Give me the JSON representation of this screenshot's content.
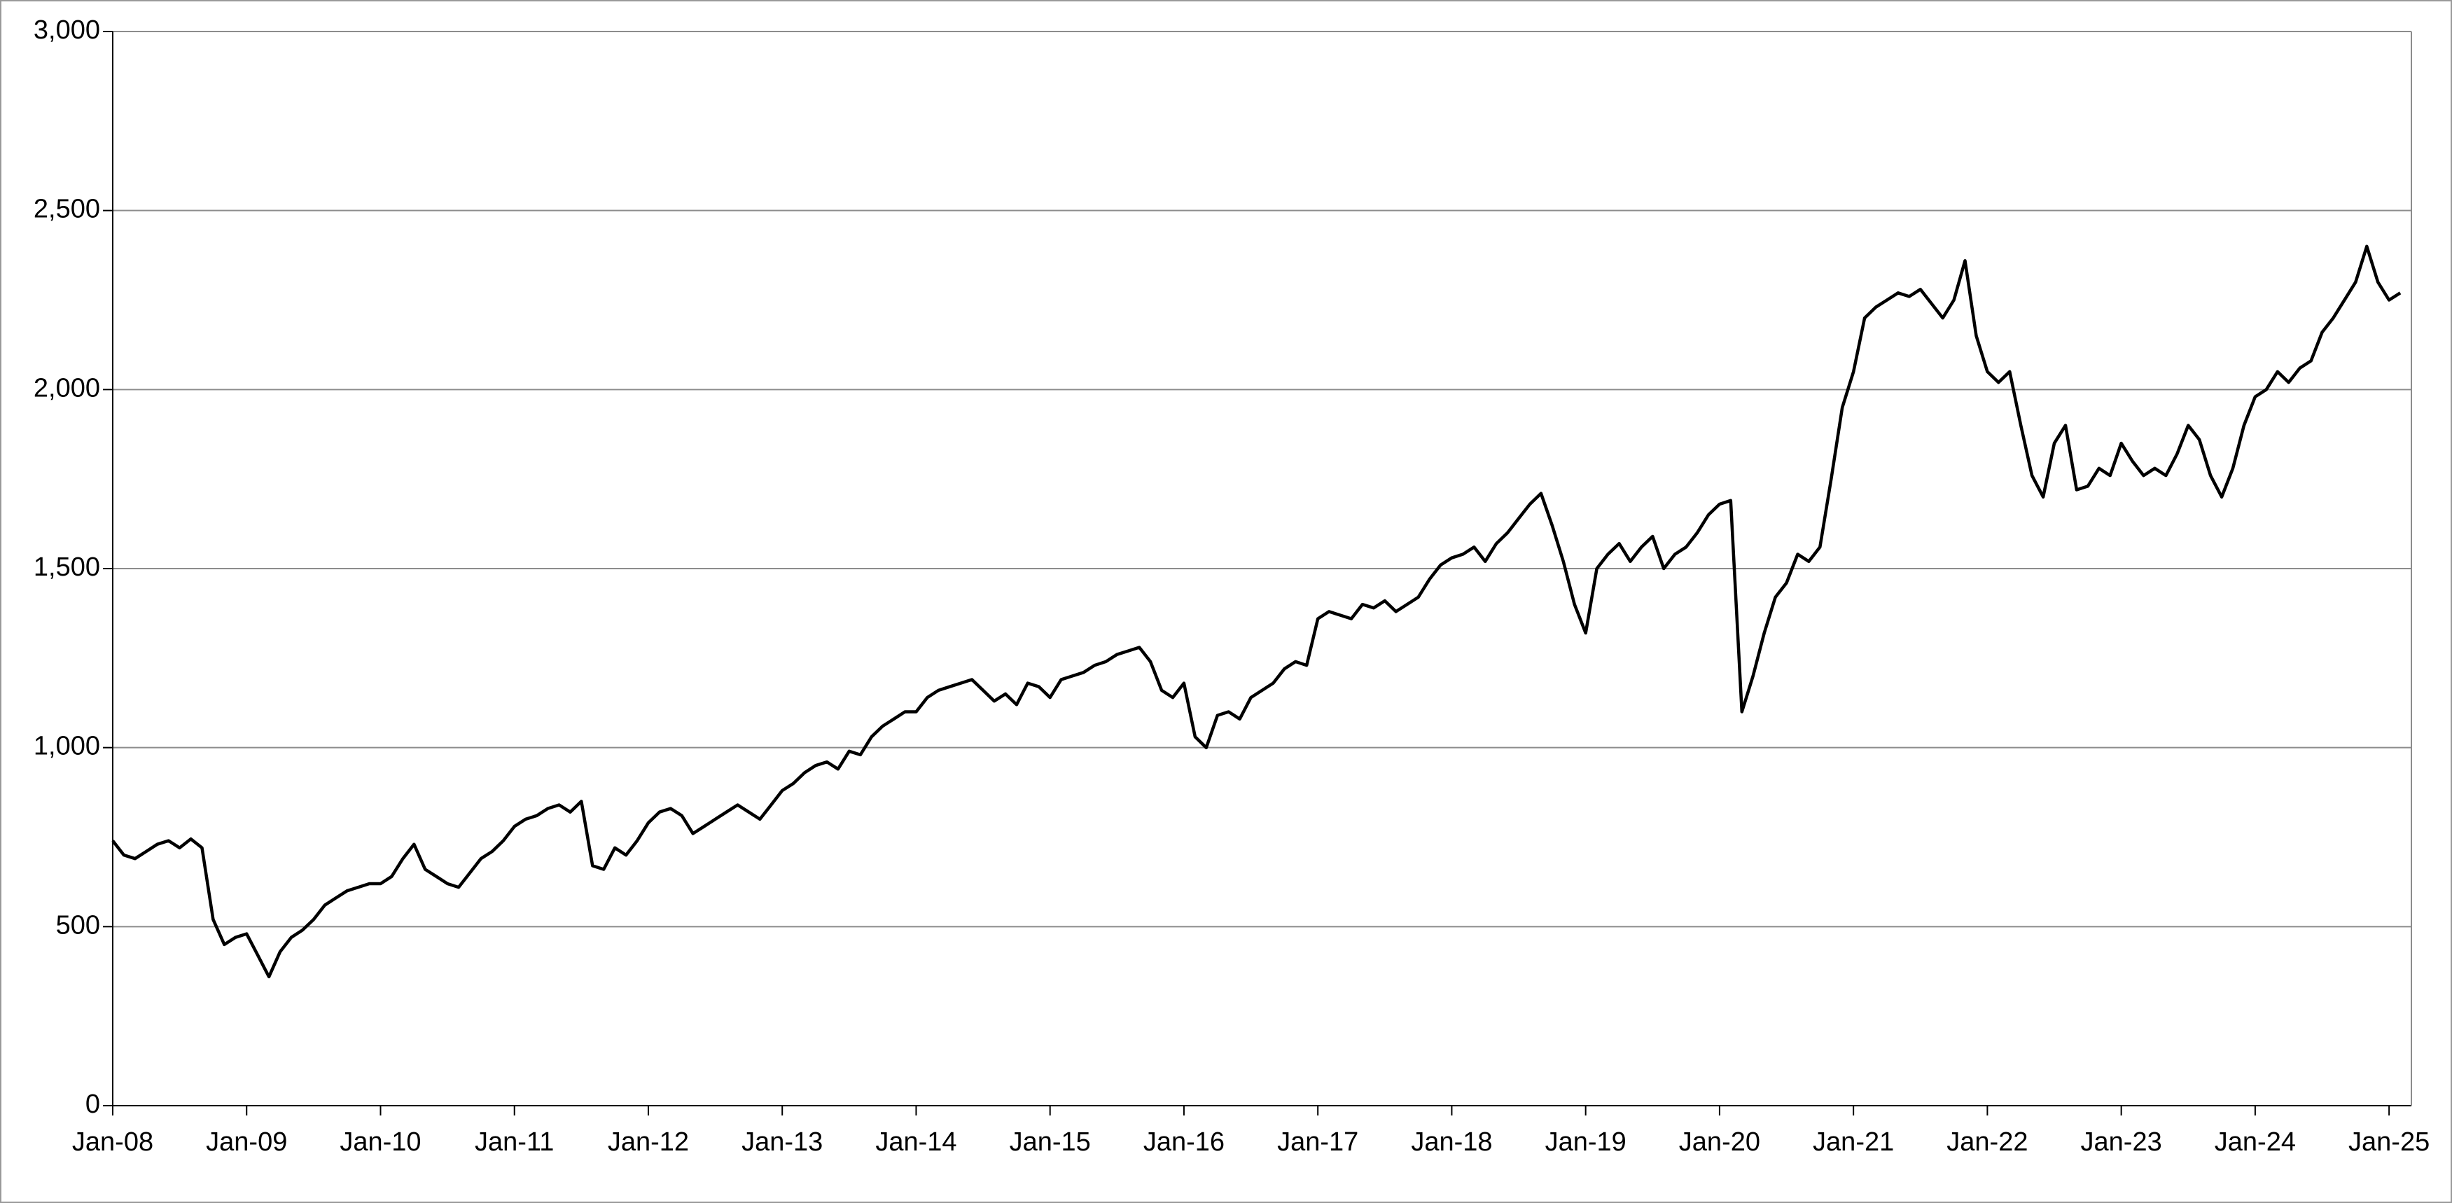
{
  "chart_data": {
    "type": "line",
    "color": "#000000",
    "grid": true,
    "x": [
      "2008-01",
      "2008-02",
      "2008-03",
      "2008-04",
      "2008-05",
      "2008-06",
      "2008-07",
      "2008-08",
      "2008-09",
      "2008-10",
      "2008-11",
      "2008-12",
      "2009-01",
      "2009-02",
      "2009-03",
      "2009-04",
      "2009-05",
      "2009-06",
      "2009-07",
      "2009-08",
      "2009-09",
      "2009-10",
      "2009-11",
      "2009-12",
      "2010-01",
      "2010-02",
      "2010-03",
      "2010-04",
      "2010-05",
      "2010-06",
      "2010-07",
      "2010-08",
      "2010-09",
      "2010-10",
      "2010-11",
      "2010-12",
      "2011-01",
      "2011-02",
      "2011-03",
      "2011-04",
      "2011-05",
      "2011-06",
      "2011-07",
      "2011-08",
      "2011-09",
      "2011-10",
      "2011-11",
      "2011-12",
      "2012-01",
      "2012-02",
      "2012-03",
      "2012-04",
      "2012-05",
      "2012-06",
      "2012-07",
      "2012-08",
      "2012-09",
      "2012-10",
      "2012-11",
      "2012-12",
      "2013-01",
      "2013-02",
      "2013-03",
      "2013-04",
      "2013-05",
      "2013-06",
      "2013-07",
      "2013-08",
      "2013-09",
      "2013-10",
      "2013-11",
      "2013-12",
      "2014-01",
      "2014-02",
      "2014-03",
      "2014-04",
      "2014-05",
      "2014-06",
      "2014-07",
      "2014-08",
      "2014-09",
      "2014-10",
      "2014-11",
      "2014-12",
      "2015-01",
      "2015-02",
      "2015-03",
      "2015-04",
      "2015-05",
      "2015-06",
      "2015-07",
      "2015-08",
      "2015-09",
      "2015-10",
      "2015-11",
      "2015-12",
      "2016-01",
      "2016-02",
      "2016-03",
      "2016-04",
      "2016-05",
      "2016-06",
      "2016-07",
      "2016-08",
      "2016-09",
      "2016-10",
      "2016-11",
      "2016-12",
      "2017-01",
      "2017-02",
      "2017-03",
      "2017-04",
      "2017-05",
      "2017-06",
      "2017-07",
      "2017-08",
      "2017-09",
      "2017-10",
      "2017-11",
      "2017-12",
      "2018-01",
      "2018-02",
      "2018-03",
      "2018-04",
      "2018-05",
      "2018-06",
      "2018-07",
      "2018-08",
      "2018-09",
      "2018-10",
      "2018-11",
      "2018-12",
      "2019-01",
      "2019-02",
      "2019-03",
      "2019-04",
      "2019-05",
      "2019-06",
      "2019-07",
      "2019-08",
      "2019-09",
      "2019-10",
      "2019-11",
      "2019-12",
      "2020-01",
      "2020-02",
      "2020-03",
      "2020-04",
      "2020-05",
      "2020-06",
      "2020-07",
      "2020-08",
      "2020-09",
      "2020-10",
      "2020-11",
      "2020-12",
      "2021-01",
      "2021-02",
      "2021-03",
      "2021-04",
      "2021-05",
      "2021-06",
      "2021-07",
      "2021-08",
      "2021-09",
      "2021-10",
      "2021-11",
      "2021-12",
      "2022-01",
      "2022-02",
      "2022-03",
      "2022-04",
      "2022-05",
      "2022-06",
      "2022-07",
      "2022-08",
      "2022-09",
      "2022-10",
      "2022-11",
      "2022-12",
      "2023-01",
      "2023-02",
      "2023-03",
      "2023-04",
      "2023-05",
      "2023-06",
      "2023-07",
      "2023-08",
      "2023-09",
      "2023-10",
      "2023-11",
      "2023-12",
      "2024-01",
      "2024-02",
      "2024-03",
      "2024-04",
      "2024-05",
      "2024-06",
      "2024-07",
      "2024-08",
      "2024-09",
      "2024-10",
      "2024-11",
      "2024-12",
      "2025-01",
      "2025-02"
    ],
    "values": [
      740,
      700,
      690,
      710,
      730,
      740,
      720,
      745,
      720,
      520,
      450,
      470,
      480,
      420,
      360,
      430,
      470,
      490,
      520,
      560,
      580,
      600,
      610,
      620,
      620,
      640,
      690,
      730,
      660,
      640,
      620,
      610,
      650,
      690,
      710,
      740,
      780,
      800,
      810,
      830,
      840,
      820,
      850,
      670,
      660,
      720,
      700,
      740,
      790,
      820,
      830,
      810,
      760,
      780,
      800,
      820,
      840,
      820,
      800,
      840,
      880,
      900,
      930,
      950,
      960,
      940,
      990,
      980,
      1030,
      1060,
      1080,
      1100,
      1100,
      1140,
      1160,
      1170,
      1180,
      1190,
      1160,
      1130,
      1150,
      1120,
      1180,
      1170,
      1140,
      1190,
      1200,
      1210,
      1230,
      1240,
      1260,
      1270,
      1280,
      1240,
      1160,
      1140,
      1180,
      1030,
      1000,
      1090,
      1100,
      1080,
      1140,
      1160,
      1180,
      1220,
      1240,
      1230,
      1360,
      1380,
      1370,
      1360,
      1400,
      1390,
      1410,
      1380,
      1400,
      1420,
      1470,
      1510,
      1530,
      1540,
      1560,
      1520,
      1570,
      1600,
      1640,
      1680,
      1710,
      1620,
      1520,
      1400,
      1320,
      1500,
      1540,
      1570,
      1520,
      1560,
      1590,
      1500,
      1540,
      1560,
      1600,
      1650,
      1680,
      1690,
      1100,
      1200,
      1320,
      1420,
      1460,
      1540,
      1520,
      1560,
      1750,
      1950,
      2050,
      2200,
      2230,
      2250,
      2270,
      2260,
      2280,
      2240,
      2200,
      2250,
      2360,
      2150,
      2050,
      2020,
      2050,
      1900,
      1760,
      1700,
      1850,
      1900,
      1720,
      1730,
      1780,
      1760,
      1850,
      1800,
      1760,
      1780,
      1760,
      1820,
      1900,
      1860,
      1760,
      1700,
      1780,
      1900,
      1980,
      2000,
      2050,
      2020,
      2060,
      2080,
      2160,
      2200,
      2250,
      2300,
      2400,
      2300,
      2250,
      2270
    ],
    "xlim": [
      "2008-01",
      "2025-03"
    ],
    "xticks": [
      {
        "value": "2008-01",
        "label": "Jan-08"
      },
      {
        "value": "2009-01",
        "label": "Jan-09"
      },
      {
        "value": "2010-01",
        "label": "Jan-10"
      },
      {
        "value": "2011-01",
        "label": "Jan-11"
      },
      {
        "value": "2012-01",
        "label": "Jan-12"
      },
      {
        "value": "2013-01",
        "label": "Jan-13"
      },
      {
        "value": "2014-01",
        "label": "Jan-14"
      },
      {
        "value": "2015-01",
        "label": "Jan-15"
      },
      {
        "value": "2016-01",
        "label": "Jan-16"
      },
      {
        "value": "2017-01",
        "label": "Jan-17"
      },
      {
        "value": "2018-01",
        "label": "Jan-18"
      },
      {
        "value": "2019-01",
        "label": "Jan-19"
      },
      {
        "value": "2020-01",
        "label": "Jan-20"
      },
      {
        "value": "2021-01",
        "label": "Jan-21"
      },
      {
        "value": "2022-01",
        "label": "Jan-22"
      },
      {
        "value": "2023-01",
        "label": "Jan-23"
      },
      {
        "value": "2024-01",
        "label": "Jan-24"
      },
      {
        "value": "2025-01",
        "label": "Jan-25"
      }
    ],
    "ylim": [
      0,
      3000
    ],
    "yticks": [
      0,
      500,
      {
        "value": 1000,
        "label": "1,000"
      },
      {
        "value": 1500,
        "label": "1,500"
      },
      {
        "value": 2000,
        "label": "2,000"
      },
      {
        "value": 2500,
        "label": "2,500"
      },
      {
        "value": 3000,
        "label": "3,000"
      }
    ]
  }
}
